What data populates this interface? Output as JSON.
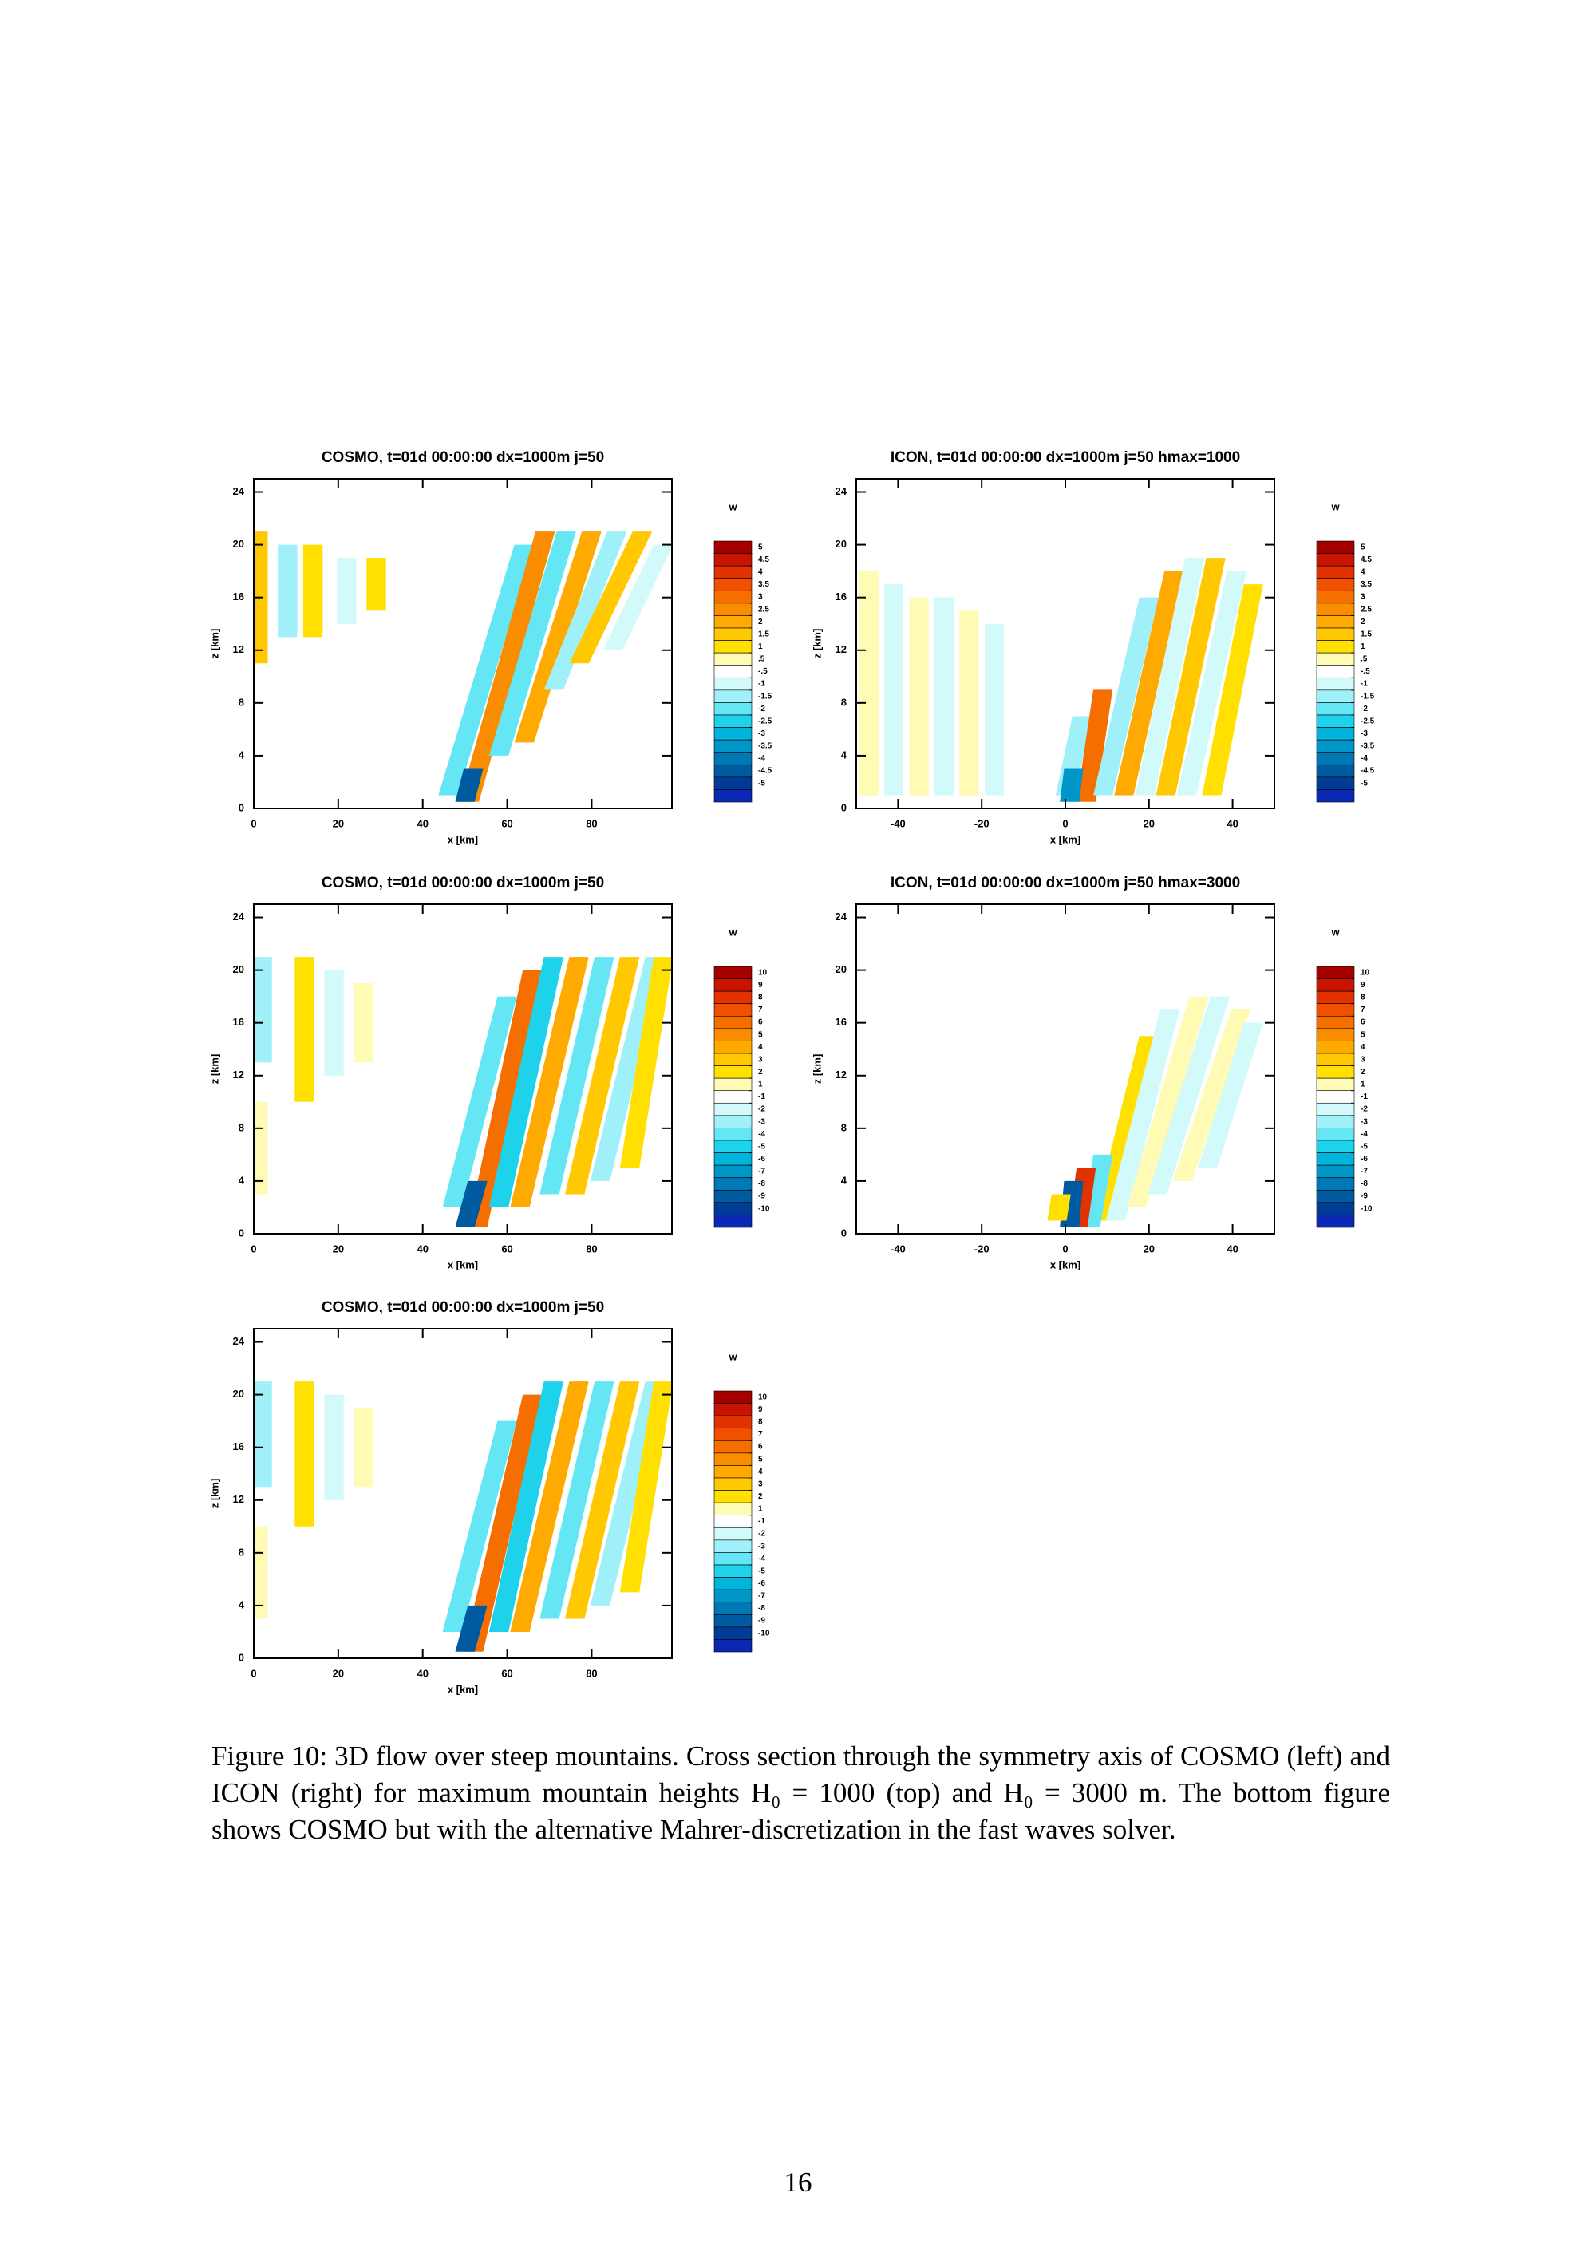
{
  "chart_data": [
    {
      "type": "heatmap",
      "title": "COSMO, t=01d 00:00:00 dx=1000m j=50",
      "xlabel": "x [km]",
      "ylabel": "z [km]",
      "xlim": [
        0,
        99
      ],
      "xticks": [
        0,
        20,
        40,
        60,
        80
      ],
      "ylim": [
        0,
        25
      ],
      "yticks": [
        0,
        4,
        8,
        12,
        16,
        20,
        24
      ],
      "colorbar_title": "w",
      "levels": [
        5,
        4.5,
        4,
        3.5,
        3,
        2.5,
        2,
        1.5,
        1,
        {
          "value": 0.5,
          "label": ".5"
        },
        {
          "value": -0.5,
          "label": "-.5"
        },
        -1,
        -1.5,
        -2,
        -2.5,
        -3,
        -3.5,
        -4,
        -4.5,
        -5
      ],
      "colors": [
        "#a50000",
        "#c81400",
        "#e13200",
        "#f05000",
        "#f56e00",
        "#fa8c00",
        "#ffaa00",
        "#ffc800",
        "#ffe000",
        "#fffab4",
        "#ffffff",
        "#d2fafa",
        "#a0f0fa",
        "#64e6f5",
        "#1ed2eb",
        "#00b4dc",
        "#0096c8",
        "#0078b4",
        "#005aa0",
        "#003c96",
        "#0a28b4"
      ],
      "stripes": [
        {
          "x": [
            46,
            64
          ],
          "z": [
            1,
            20
          ],
          "w": -2
        },
        {
          "x": [
            51,
            69
          ],
          "z": [
            0.5,
            21
          ],
          "w": 2.5
        },
        {
          "x": [
            58,
            74
          ],
          "z": [
            4,
            21
          ],
          "w": -2
        },
        {
          "x": [
            64,
            80
          ],
          "z": [
            5,
            21
          ],
          "w": 2
        },
        {
          "x": [
            71,
            86
          ],
          "z": [
            9,
            21
          ],
          "w": -1.5
        },
        {
          "x": [
            77,
            92
          ],
          "z": [
            11,
            21
          ],
          "w": 1.5
        },
        {
          "x": [
            85,
            97
          ],
          "z": [
            12,
            20
          ],
          "w": -1
        },
        {
          "x": [
            1,
            1
          ],
          "z": [
            11,
            21
          ],
          "w": 1.5
        },
        {
          "x": [
            8,
            8
          ],
          "z": [
            13,
            20
          ],
          "w": -1.5
        },
        {
          "x": [
            14,
            14
          ],
          "z": [
            13,
            20
          ],
          "w": 1
        },
        {
          "x": [
            22,
            22
          ],
          "z": [
            14,
            19
          ],
          "w": -1
        },
        {
          "x": [
            29,
            29
          ],
          "z": [
            15,
            19
          ],
          "w": 1
        },
        {
          "x": [
            50,
            52
          ],
          "z": [
            0.5,
            3
          ],
          "w": -4.5
        }
      ]
    },
    {
      "type": "heatmap",
      "title": "ICON, t=01d 00:00:00 dx=1000m j=50 hmax=1000",
      "xlabel": "x [km]",
      "ylabel": "z [km]",
      "xlim": [
        -50,
        50
      ],
      "xticks": [
        -40,
        -20,
        0,
        20,
        40
      ],
      "ylim": [
        0,
        25
      ],
      "yticks": [
        0,
        4,
        8,
        12,
        16,
        20,
        24
      ],
      "colorbar_title": "w",
      "levels": [
        5,
        4.5,
        4,
        3.5,
        3,
        2.5,
        2,
        1.5,
        1,
        {
          "value": 0.5,
          "label": ".5"
        },
        {
          "value": -0.5,
          "label": "-.5"
        },
        -1,
        -1.5,
        -2,
        -2.5,
        -3,
        -3.5,
        -4,
        -4.5,
        -5
      ],
      "colors": [
        "#a50000",
        "#c81400",
        "#e13200",
        "#f05000",
        "#f56e00",
        "#fa8c00",
        "#ffaa00",
        "#ffc800",
        "#ffe000",
        "#fffab4",
        "#ffffff",
        "#d2fafa",
        "#a0f0fa",
        "#64e6f5",
        "#1ed2eb",
        "#00b4dc",
        "#0096c8",
        "#0078b4",
        "#005aa0",
        "#003c96",
        "#0a28b4"
      ],
      "stripes": [
        {
          "x": [
            -47,
            -47
          ],
          "z": [
            1,
            18
          ],
          "w": 0.7
        },
        {
          "x": [
            -41,
            -41
          ],
          "z": [
            1,
            17
          ],
          "w": -0.7
        },
        {
          "x": [
            -35,
            -35
          ],
          "z": [
            1,
            16
          ],
          "w": 0.7
        },
        {
          "x": [
            -29,
            -29
          ],
          "z": [
            1,
            16
          ],
          "w": -0.7
        },
        {
          "x": [
            -23,
            -23
          ],
          "z": [
            1,
            15
          ],
          "w": 0.7
        },
        {
          "x": [
            -17,
            -17
          ],
          "z": [
            1,
            14
          ],
          "w": -0.7
        },
        {
          "x": [
            0,
            4
          ],
          "z": [
            1,
            7
          ],
          "w": -1.5
        },
        {
          "x": [
            5,
            9
          ],
          "z": [
            0.5,
            9
          ],
          "w": 3
        },
        {
          "x": [
            9,
            20
          ],
          "z": [
            1,
            16
          ],
          "w": -1.5
        },
        {
          "x": [
            14,
            26
          ],
          "z": [
            1,
            18
          ],
          "w": 2
        },
        {
          "x": [
            19,
            31
          ],
          "z": [
            1,
            19
          ],
          "w": -1
        },
        {
          "x": [
            24,
            36
          ],
          "z": [
            1,
            19
          ],
          "w": 1.5
        },
        {
          "x": [
            29,
            41
          ],
          "z": [
            1,
            18
          ],
          "w": -0.7
        },
        {
          "x": [
            35,
            45
          ],
          "z": [
            1,
            17
          ],
          "w": 1
        },
        {
          "x": [
            1,
            2
          ],
          "z": [
            0.5,
            3
          ],
          "w": -3.5
        }
      ]
    },
    {
      "type": "heatmap",
      "title": "COSMO, t=01d 00:00:00 dx=1000m j=50",
      "xlabel": "x [km]",
      "ylabel": "z [km]",
      "xlim": [
        0,
        99
      ],
      "xticks": [
        0,
        20,
        40,
        60,
        80
      ],
      "ylim": [
        0,
        25
      ],
      "yticks": [
        0,
        4,
        8,
        12,
        16,
        20,
        24
      ],
      "colorbar_title": "w",
      "levels": [
        10,
        9,
        8,
        7,
        6,
        5,
        4,
        3,
        2,
        1,
        -1,
        -2,
        -3,
        -4,
        -5,
        -6,
        -7,
        -8,
        -9,
        -10
      ],
      "colors": [
        "#a50000",
        "#c81400",
        "#e13200",
        "#f05000",
        "#f56e00",
        "#fa8c00",
        "#ffaa00",
        "#ffc800",
        "#ffe000",
        "#fffab4",
        "#ffffff",
        "#d2fafa",
        "#a0f0fa",
        "#64e6f5",
        "#1ed2eb",
        "#00b4dc",
        "#0096c8",
        "#0078b4",
        "#005aa0",
        "#003c96",
        "#0a28b4"
      ],
      "stripes": [
        {
          "x": [
            47,
            60
          ],
          "z": [
            2,
            18
          ],
          "w": -4
        },
        {
          "x": [
            53,
            66
          ],
          "z": [
            0.5,
            20
          ],
          "w": 6
        },
        {
          "x": [
            58,
            71
          ],
          "z": [
            2,
            21
          ],
          "w": -5
        },
        {
          "x": [
            63,
            77
          ],
          "z": [
            2,
            21
          ],
          "w": 4
        },
        {
          "x": [
            70,
            83
          ],
          "z": [
            3,
            21
          ],
          "w": -4
        },
        {
          "x": [
            76,
            89
          ],
          "z": [
            3,
            21
          ],
          "w": 3
        },
        {
          "x": [
            82,
            95
          ],
          "z": [
            4,
            21
          ],
          "w": -3
        },
        {
          "x": [
            89,
            97
          ],
          "z": [
            5,
            21
          ],
          "w": 2.5
        },
        {
          "x": [
            2,
            2
          ],
          "z": [
            13,
            21
          ],
          "w": -2.5
        },
        {
          "x": [
            12,
            12
          ],
          "z": [
            10,
            21
          ],
          "w": 2.5
        },
        {
          "x": [
            19,
            19
          ],
          "z": [
            12,
            20
          ],
          "w": -1.5
        },
        {
          "x": [
            26,
            26
          ],
          "z": [
            13,
            19
          ],
          "w": 1.5
        },
        {
          "x": [
            1,
            1
          ],
          "z": [
            3,
            10
          ],
          "w": 1.5
        },
        {
          "x": [
            50,
            53
          ],
          "z": [
            0.5,
            4
          ],
          "w": -9
        }
      ]
    },
    {
      "type": "heatmap",
      "title": "ICON, t=01d 00:00:00 dx=1000m j=50 hmax=3000",
      "xlabel": "x [km]",
      "ylabel": "z [km]",
      "xlim": [
        -50,
        50
      ],
      "xticks": [
        -40,
        -20,
        0,
        20,
        40
      ],
      "ylim": [
        0,
        25
      ],
      "yticks": [
        0,
        4,
        8,
        12,
        16,
        20,
        24
      ],
      "colorbar_title": "w",
      "levels": [
        10,
        9,
        8,
        7,
        6,
        5,
        4,
        3,
        2,
        1,
        -1,
        -2,
        -3,
        -4,
        -5,
        -6,
        -7,
        -8,
        -9,
        -10
      ],
      "colors": [
        "#a50000",
        "#c81400",
        "#e13200",
        "#f05000",
        "#f56e00",
        "#fa8c00",
        "#ffaa00",
        "#ffc800",
        "#ffe000",
        "#fffab4",
        "#ffffff",
        "#d2fafa",
        "#a0f0fa",
        "#64e6f5",
        "#1ed2eb",
        "#00b4dc",
        "#0096c8",
        "#0078b4",
        "#005aa0",
        "#003c96",
        "#0a28b4"
      ],
      "stripes": [
        {
          "x": [
            9,
            20
          ],
          "z": [
            1,
            15
          ],
          "w": 2
        },
        {
          "x": [
            12,
            25
          ],
          "z": [
            1,
            17
          ],
          "w": -1.5
        },
        {
          "x": [
            17,
            32
          ],
          "z": [
            2,
            18
          ],
          "w": 1.5
        },
        {
          "x": [
            22,
            37
          ],
          "z": [
            3,
            18
          ],
          "w": -1.5
        },
        {
          "x": [
            28,
            42
          ],
          "z": [
            4,
            17
          ],
          "w": 1.5
        },
        {
          "x": [
            34,
            45
          ],
          "z": [
            5,
            16
          ],
          "w": -1.5
        },
        {
          "x": [
            6,
            9
          ],
          "z": [
            0.5,
            6
          ],
          "w": -4
        },
        {
          "x": [
            3,
            5
          ],
          "z": [
            0.5,
            5
          ],
          "w": 8
        },
        {
          "x": [
            1,
            2
          ],
          "z": [
            0.5,
            4
          ],
          "w": -9
        },
        {
          "x": [
            -2,
            -1
          ],
          "z": [
            1,
            3
          ],
          "w": 2
        }
      ]
    },
    {
      "type": "heatmap",
      "title": "COSMO, t=01d 00:00:00 dx=1000m j=50",
      "xlabel": "x [km]",
      "ylabel": "z [km]",
      "xlim": [
        0,
        99
      ],
      "xticks": [
        0,
        20,
        40,
        60,
        80
      ],
      "ylim": [
        0,
        25
      ],
      "yticks": [
        0,
        4,
        8,
        12,
        16,
        20,
        24
      ],
      "colorbar_title": "w",
      "levels": [
        10,
        9,
        8,
        7,
        6,
        5,
        4,
        3,
        2,
        1,
        -1,
        -2,
        -3,
        -4,
        -5,
        -6,
        -7,
        -8,
        -9,
        -10
      ],
      "colors": [
        "#a50000",
        "#c81400",
        "#e13200",
        "#f05000",
        "#f56e00",
        "#fa8c00",
        "#ffaa00",
        "#ffc800",
        "#ffe000",
        "#fffab4",
        "#ffffff",
        "#d2fafa",
        "#a0f0fa",
        "#64e6f5",
        "#1ed2eb",
        "#00b4dc",
        "#0096c8",
        "#0078b4",
        "#005aa0",
        "#003c96",
        "#0a28b4"
      ],
      "stripes": [
        {
          "x": [
            47,
            60
          ],
          "z": [
            2,
            18
          ],
          "w": -4
        },
        {
          "x": [
            52,
            66
          ],
          "z": [
            0.5,
            20
          ],
          "w": 6
        },
        {
          "x": [
            58,
            71
          ],
          "z": [
            2,
            21
          ],
          "w": -5
        },
        {
          "x": [
            63,
            77
          ],
          "z": [
            2,
            21
          ],
          "w": 4
        },
        {
          "x": [
            70,
            83
          ],
          "z": [
            3,
            21
          ],
          "w": -4
        },
        {
          "x": [
            76,
            89
          ],
          "z": [
            3,
            21
          ],
          "w": 3
        },
        {
          "x": [
            82,
            95
          ],
          "z": [
            4,
            21
          ],
          "w": -3
        },
        {
          "x": [
            89,
            97
          ],
          "z": [
            5,
            21
          ],
          "w": 2.5
        },
        {
          "x": [
            2,
            2
          ],
          "z": [
            13,
            21
          ],
          "w": -2.5
        },
        {
          "x": [
            12,
            12
          ],
          "z": [
            10,
            21
          ],
          "w": 2.5
        },
        {
          "x": [
            19,
            19
          ],
          "z": [
            12,
            20
          ],
          "w": -1.5
        },
        {
          "x": [
            26,
            26
          ],
          "z": [
            13,
            19
          ],
          "w": 1.5
        },
        {
          "x": [
            1,
            1
          ],
          "z": [
            3,
            10
          ],
          "w": 1.5
        },
        {
          "x": [
            50,
            53
          ],
          "z": [
            0.5,
            4
          ],
          "w": -9
        }
      ]
    }
  ],
  "caption": "Figure 10: 3D flow over steep mountains. Cross section through the symmetry axis of COSMO (left) and ICON (right) for maximum mountain heights H₀ = 1000 (top) and H₀ = 3000 m. The bottom figure shows COSMO but with the alternative Mahrer-discretization in the fast waves solver.",
  "page_number": 16
}
